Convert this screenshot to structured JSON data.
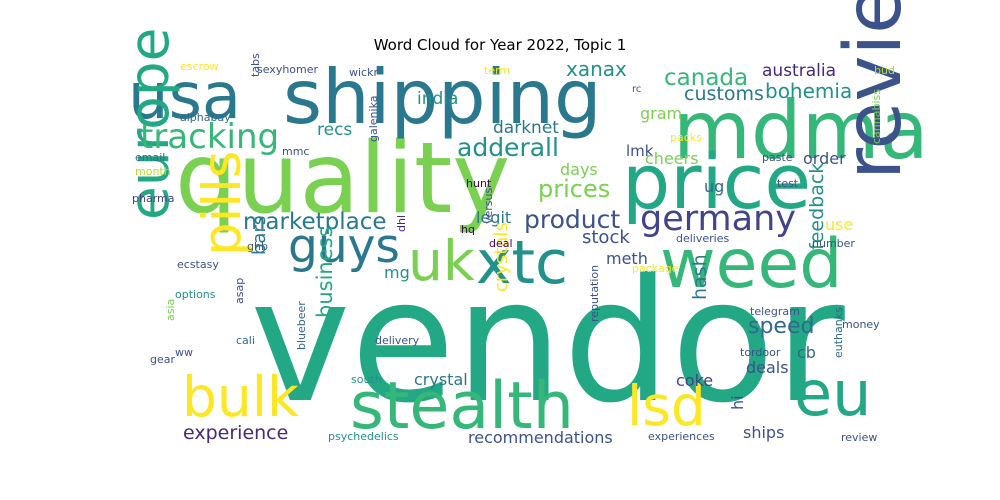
{
  "figure": {
    "title": "Word Cloud for Year 2022, Topic 1",
    "background": "#ffffff",
    "colormap": "viridis"
  },
  "words": [
    {
      "text": "vendor",
      "color": "#22a884"
    },
    {
      "text": "quality",
      "color": "#7ad151"
    },
    {
      "text": "shipping",
      "color": "#2a788e"
    },
    {
      "text": "mdma",
      "color": "#35b779"
    },
    {
      "text": "price",
      "color": "#22a884"
    },
    {
      "text": "reviews",
      "color": "#3b528b"
    },
    {
      "text": "weed",
      "color": "#35b779"
    },
    {
      "text": "usa",
      "color": "#2a788e"
    },
    {
      "text": "stealth",
      "color": "#35b779"
    },
    {
      "text": "europe",
      "color": "#22a884"
    },
    {
      "text": "eu",
      "color": "#22a884"
    },
    {
      "text": "xtc",
      "color": "#21918c"
    },
    {
      "text": "uk",
      "color": "#7ad151"
    },
    {
      "text": "lsd",
      "color": "#fde725"
    },
    {
      "text": "bulk",
      "color": "#fde725"
    },
    {
      "text": "guys",
      "color": "#2a788e"
    },
    {
      "text": "pills",
      "color": "#fde725"
    },
    {
      "text": "germany",
      "color": "#414487"
    },
    {
      "text": "tracking",
      "color": "#35b779"
    },
    {
      "text": "marketplace",
      "color": "#2a788e"
    },
    {
      "text": "product",
      "color": "#3b528b"
    },
    {
      "text": "adderall",
      "color": "#21918c"
    },
    {
      "text": "prices",
      "color": "#7ad151"
    },
    {
      "text": "canada",
      "color": "#35b779"
    },
    {
      "text": "xanax",
      "color": "#21918c"
    },
    {
      "text": "australia",
      "color": "#482878"
    },
    {
      "text": "bohemia",
      "color": "#21918c"
    },
    {
      "text": "customs",
      "color": "#2a788e"
    },
    {
      "text": "india",
      "color": "#21918c"
    },
    {
      "text": "darknet",
      "color": "#2a788e"
    },
    {
      "text": "recs",
      "color": "#21918c"
    },
    {
      "text": "days",
      "color": "#7ad151"
    },
    {
      "text": "lmk",
      "color": "#3b528b"
    },
    {
      "text": "gram",
      "color": "#7ad151"
    },
    {
      "text": "rc",
      "color": "#3b528b"
    },
    {
      "text": "cheers",
      "color": "#7ad151"
    },
    {
      "text": "order",
      "color": "#3b528b"
    },
    {
      "text": "legit",
      "color": "#2a788e"
    },
    {
      "text": "stock",
      "color": "#3b528b"
    },
    {
      "text": "ug",
      "color": "#31688e"
    },
    {
      "text": "speed",
      "color": "#31688e"
    },
    {
      "text": "feedback",
      "color": "#21918c"
    },
    {
      "text": "meth",
      "color": "#3b528b"
    },
    {
      "text": "hash",
      "color": "#2a788e"
    },
    {
      "text": "business",
      "color": "#22a884"
    },
    {
      "text": "crystals",
      "color": "#fde725"
    },
    {
      "text": "bars",
      "color": "#2a788e"
    },
    {
      "text": "mg",
      "color": "#21918c"
    },
    {
      "text": "use",
      "color": "#fde725"
    },
    {
      "text": "cb",
      "color": "#31688e"
    },
    {
      "text": "deals",
      "color": "#3b528b"
    },
    {
      "text": "hi",
      "color": "#3b528b"
    },
    {
      "text": "coke",
      "color": "#414487"
    },
    {
      "text": "crystal",
      "color": "#2a788e"
    },
    {
      "text": "experience",
      "color": "#482878"
    },
    {
      "text": "recommendations",
      "color": "#3b528b"
    },
    {
      "text": "ships",
      "color": "#3b528b"
    },
    {
      "text": "escrow",
      "color": "#fde725"
    },
    {
      "text": "sexyhomer",
      "color": "#3b528b"
    },
    {
      "text": "wickr",
      "color": "#3b528b"
    },
    {
      "text": "term",
      "color": "#fde725"
    },
    {
      "text": "bud",
      "color": "#b5de2b"
    },
    {
      "text": "alphabay",
      "color": "#31688e"
    },
    {
      "text": "tabs",
      "color": "#3b528b"
    },
    {
      "text": "mmc",
      "color": "#3b528b"
    },
    {
      "text": "email",
      "color": "#31688e"
    },
    {
      "text": "month",
      "color": "#b5de2b"
    },
    {
      "text": "pharma",
      "color": "#414487"
    },
    {
      "text": "galenika",
      "color": "#3b528b"
    },
    {
      "text": "hunt",
      "color": "#440154"
    },
    {
      "text": "hq",
      "color": "#440154"
    },
    {
      "text": "deal",
      "color": "#440154"
    },
    {
      "text": "versus",
      "color": "#3b528b"
    },
    {
      "text": "dhl",
      "color": "#482878"
    },
    {
      "text": "package",
      "color": "#fde725"
    },
    {
      "text": "packs",
      "color": "#fde725"
    },
    {
      "text": "cannabiss",
      "color": "#7ad151"
    },
    {
      "text": "paste",
      "color": "#3b528b"
    },
    {
      "text": "test",
      "color": "#3b528b"
    },
    {
      "text": "deliveries",
      "color": "#3b528b"
    },
    {
      "text": "number",
      "color": "#3b528b"
    },
    {
      "text": "ghb",
      "color": "#3b528b"
    },
    {
      "text": "ecstasy",
      "color": "#3b528b"
    },
    {
      "text": "options",
      "color": "#21918c"
    },
    {
      "text": "asap",
      "color": "#3b528b"
    },
    {
      "text": "asia",
      "color": "#7ad151"
    },
    {
      "text": "cali",
      "color": "#31688e"
    },
    {
      "text": "ww",
      "color": "#3b528b"
    },
    {
      "text": "gear",
      "color": "#3b528b"
    },
    {
      "text": "telegram",
      "color": "#3b528b"
    },
    {
      "text": "money",
      "color": "#3b528b"
    },
    {
      "text": "tordoor",
      "color": "#3b528b"
    },
    {
      "text": "euthanks",
      "color": "#31688e"
    },
    {
      "text": "delivery",
      "color": "#3b528b"
    },
    {
      "text": "south",
      "color": "#21918c"
    },
    {
      "text": "bluebeer",
      "color": "#31688e"
    },
    {
      "text": "reputation",
      "color": "#3b528b"
    },
    {
      "text": "psychedelics",
      "color": "#21918c"
    },
    {
      "text": "experiences",
      "color": "#3b528b"
    },
    {
      "text": "review",
      "color": "#3b528b"
    }
  ]
}
